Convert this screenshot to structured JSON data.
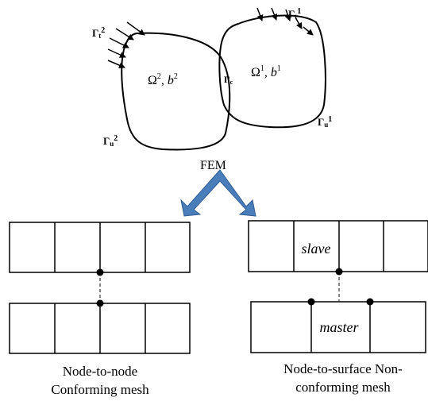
{
  "top_diagram": {
    "body1": {
      "omega": "Ω",
      "omega_sup": "1",
      "b": "b",
      "b_sup": "1"
    },
    "body2": {
      "omega": "Ω",
      "omega_sup": "2",
      "b": "b",
      "b_sup": "2"
    },
    "boundaries": {
      "gamma_t1": {
        "base": "Γ",
        "sub": "t",
        "sup": "1"
      },
      "gamma_t2": {
        "base": "Γ",
        "sub": "t",
        "sup": "2"
      },
      "gamma_u1": {
        "base": "Γ",
        "sub": "u",
        "sup": "1"
      },
      "gamma_u2": {
        "base": "Γ",
        "sub": "u",
        "sup": "2"
      },
      "gamma_c": {
        "base": "Γ",
        "sub": "c"
      }
    }
  },
  "fem_label": "FEM",
  "arrow_color": "#4a7ebb",
  "left_mesh": {
    "caption_line1": "Node-to-node",
    "caption_line2": "Conforming mesh"
  },
  "right_mesh": {
    "slave_label": "slave",
    "master_label": "master",
    "caption_line1": "Node-to-surface Non-",
    "caption_line2": "conforming mesh"
  }
}
